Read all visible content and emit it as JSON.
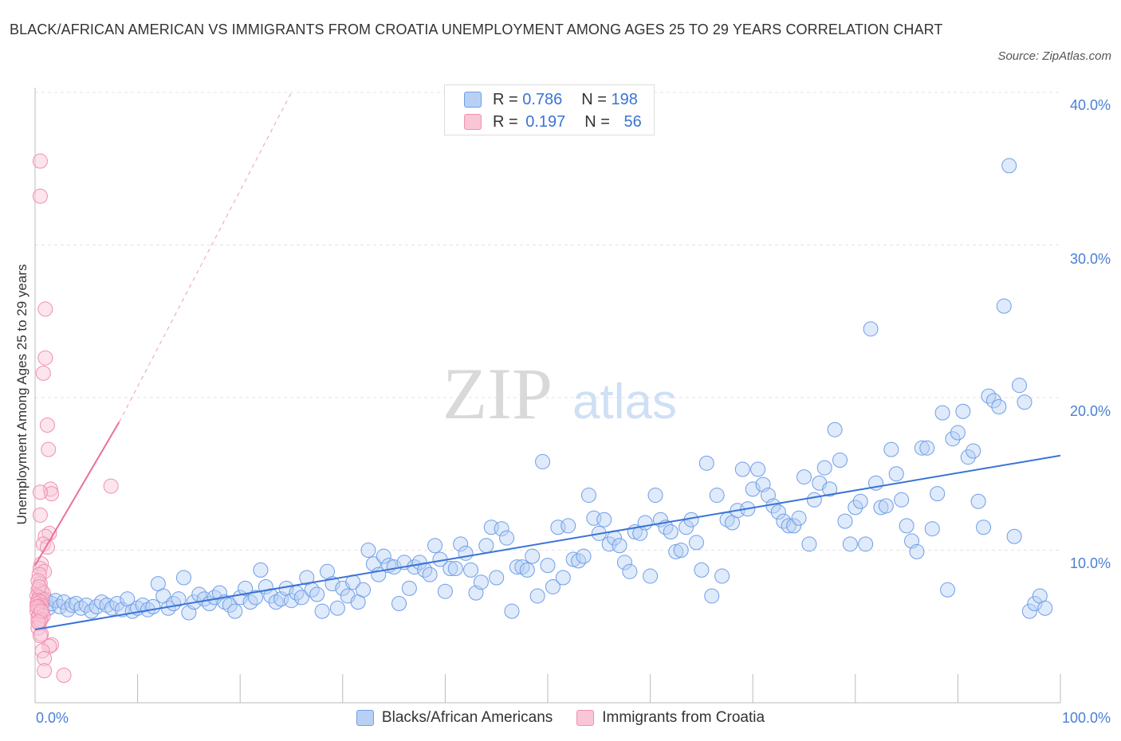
{
  "title": "BLACK/AFRICAN AMERICAN VS IMMIGRANTS FROM CROATIA UNEMPLOYMENT AMONG AGES 25 TO 29 YEARS CORRELATION CHART",
  "source": "Source: ZipAtlas.com",
  "watermark": {
    "zip": "ZIP",
    "atlas": "atlas"
  },
  "stats": [
    {
      "r_label": "R =",
      "r_value": "0.786",
      "n_label": "N =",
      "n_value": "198",
      "color": "#6f9ee8"
    },
    {
      "r_label": "R =",
      "r_value": "0.197",
      "n_label": "N =",
      "n_value": "56",
      "color": "#f08fb0"
    }
  ],
  "legend": [
    {
      "label": "Blacks/African Americans",
      "color": "#6f9ee8"
    },
    {
      "label": "Immigrants from Croatia",
      "color": "#f08fb0"
    }
  ],
  "chart_data": {
    "type": "scatter",
    "title": "BLACK/AFRICAN AMERICAN VS IMMIGRANTS FROM CROATIA UNEMPLOYMENT AMONG AGES 25 TO 29 YEARS CORRELATION CHART",
    "xlabel": "",
    "ylabel": "Unemployment Among Ages 25 to 29 years",
    "xlim": [
      0,
      100
    ],
    "ylim": [
      0,
      40
    ],
    "x_tick_labels": [
      "0.0%",
      "100.0%"
    ],
    "y_ticks": [
      10,
      20,
      30,
      40
    ],
    "y_tick_labels": [
      "10.0%",
      "20.0%",
      "30.0%",
      "40.0%"
    ],
    "series": [
      {
        "name": "Blacks/African Americans",
        "color": "#6f9ee8",
        "trend": {
          "x": [
            0,
            100
          ],
          "y": [
            4.8,
            16.2
          ],
          "style": "solid"
        },
        "points": [
          [
            0.5,
            6.4
          ],
          [
            0.8,
            6.6
          ],
          [
            1.0,
            6.8
          ],
          [
            1.3,
            6.2
          ],
          [
            1.6,
            6.5
          ],
          [
            2.0,
            6.7
          ],
          [
            2.4,
            6.3
          ],
          [
            2.8,
            6.6
          ],
          [
            3.2,
            6.1
          ],
          [
            3.6,
            6.4
          ],
          [
            4.0,
            6.5
          ],
          [
            4.5,
            6.2
          ],
          [
            5.0,
            6.4
          ],
          [
            5.5,
            6.0
          ],
          [
            6.0,
            6.3
          ],
          [
            6.5,
            6.6
          ],
          [
            7.0,
            6.4
          ],
          [
            7.5,
            6.2
          ],
          [
            8.0,
            6.5
          ],
          [
            8.5,
            6.1
          ],
          [
            9.0,
            6.8
          ],
          [
            9.5,
            6.0
          ],
          [
            10.0,
            6.2
          ],
          [
            10.5,
            6.4
          ],
          [
            11.0,
            6.1
          ],
          [
            11.5,
            6.3
          ],
          [
            12.0,
            7.8
          ],
          [
            12.5,
            7.0
          ],
          [
            13.0,
            6.2
          ],
          [
            13.5,
            6.5
          ],
          [
            14.0,
            6.8
          ],
          [
            14.5,
            8.2
          ],
          [
            15.0,
            5.9
          ],
          [
            15.5,
            6.6
          ],
          [
            16.0,
            7.1
          ],
          [
            16.5,
            6.8
          ],
          [
            17.0,
            6.5
          ],
          [
            17.5,
            6.9
          ],
          [
            18.0,
            7.2
          ],
          [
            18.5,
            6.6
          ],
          [
            19.0,
            6.4
          ],
          [
            19.5,
            6.0
          ],
          [
            20.0,
            6.9
          ],
          [
            20.5,
            7.5
          ],
          [
            21.0,
            6.6
          ],
          [
            21.5,
            6.9
          ],
          [
            22.0,
            8.7
          ],
          [
            22.5,
            7.6
          ],
          [
            23.0,
            7.0
          ],
          [
            23.5,
            6.6
          ],
          [
            24.0,
            6.8
          ],
          [
            24.5,
            7.5
          ],
          [
            25.0,
            6.7
          ],
          [
            25.5,
            7.2
          ],
          [
            26.0,
            6.9
          ],
          [
            26.5,
            8.2
          ],
          [
            27.0,
            7.4
          ],
          [
            27.5,
            7.1
          ],
          [
            28.0,
            6.0
          ],
          [
            28.5,
            8.6
          ],
          [
            29.0,
            7.8
          ],
          [
            29.5,
            6.2
          ],
          [
            30.0,
            7.5
          ],
          [
            30.5,
            7.0
          ],
          [
            31.0,
            7.9
          ],
          [
            31.5,
            6.6
          ],
          [
            32.0,
            7.4
          ],
          [
            32.5,
            10.0
          ],
          [
            33.0,
            9.1
          ],
          [
            33.5,
            8.4
          ],
          [
            34.0,
            9.6
          ],
          [
            34.5,
            9.0
          ],
          [
            35.0,
            8.9
          ],
          [
            35.5,
            6.5
          ],
          [
            36.0,
            9.2
          ],
          [
            36.5,
            7.5
          ],
          [
            37.0,
            8.9
          ],
          [
            37.5,
            9.2
          ],
          [
            38.0,
            8.7
          ],
          [
            38.5,
            8.4
          ],
          [
            39.0,
            10.3
          ],
          [
            39.5,
            9.4
          ],
          [
            40.0,
            7.3
          ],
          [
            40.5,
            8.8
          ],
          [
            41.0,
            8.8
          ],
          [
            41.5,
            10.4
          ],
          [
            42.0,
            9.8
          ],
          [
            42.5,
            8.7
          ],
          [
            43.0,
            7.2
          ],
          [
            43.5,
            7.9
          ],
          [
            44.0,
            10.3
          ],
          [
            44.5,
            11.5
          ],
          [
            45.0,
            8.2
          ],
          [
            45.5,
            11.4
          ],
          [
            46.0,
            10.8
          ],
          [
            46.5,
            6.0
          ],
          [
            47.0,
            8.9
          ],
          [
            47.5,
            8.9
          ],
          [
            48.0,
            8.7
          ],
          [
            48.5,
            9.6
          ],
          [
            49.0,
            7.0
          ],
          [
            49.5,
            15.8
          ],
          [
            50.0,
            9.0
          ],
          [
            50.5,
            7.6
          ],
          [
            51.0,
            11.5
          ],
          [
            51.5,
            8.2
          ],
          [
            52.0,
            11.6
          ],
          [
            52.5,
            9.4
          ],
          [
            53.0,
            9.3
          ],
          [
            53.5,
            9.6
          ],
          [
            54.0,
            13.6
          ],
          [
            54.5,
            12.1
          ],
          [
            55.0,
            11.1
          ],
          [
            55.5,
            12.0
          ],
          [
            56.0,
            10.4
          ],
          [
            56.5,
            10.8
          ],
          [
            57.0,
            10.3
          ],
          [
            57.5,
            9.2
          ],
          [
            58.0,
            8.6
          ],
          [
            58.5,
            11.2
          ],
          [
            59.0,
            11.1
          ],
          [
            59.5,
            11.8
          ],
          [
            60.0,
            8.3
          ],
          [
            60.5,
            13.6
          ],
          [
            61.0,
            12.0
          ],
          [
            61.5,
            11.5
          ],
          [
            62.0,
            11.2
          ],
          [
            62.5,
            9.9
          ],
          [
            63.0,
            10.0
          ],
          [
            63.5,
            11.5
          ],
          [
            64.0,
            12.0
          ],
          [
            64.5,
            10.5
          ],
          [
            65.0,
            8.7
          ],
          [
            65.5,
            15.7
          ],
          [
            66.0,
            7.0
          ],
          [
            66.5,
            13.6
          ],
          [
            67.0,
            8.3
          ],
          [
            67.5,
            12.0
          ],
          [
            68.0,
            11.8
          ],
          [
            68.5,
            12.6
          ],
          [
            69.0,
            15.3
          ],
          [
            69.5,
            12.7
          ],
          [
            70.0,
            14.0
          ],
          [
            70.5,
            15.3
          ],
          [
            71.0,
            14.3
          ],
          [
            71.5,
            13.6
          ],
          [
            72.0,
            12.9
          ],
          [
            72.5,
            12.5
          ],
          [
            73.0,
            11.9
          ],
          [
            73.5,
            11.6
          ],
          [
            74.0,
            11.6
          ],
          [
            74.5,
            12.1
          ],
          [
            75.0,
            14.8
          ],
          [
            75.5,
            10.4
          ],
          [
            76.0,
            13.3
          ],
          [
            76.5,
            14.4
          ],
          [
            77.0,
            15.4
          ],
          [
            77.5,
            14.0
          ],
          [
            78.0,
            17.9
          ],
          [
            78.5,
            15.9
          ],
          [
            79.0,
            11.9
          ],
          [
            79.5,
            10.4
          ],
          [
            80.0,
            12.8
          ],
          [
            80.5,
            13.2
          ],
          [
            81.0,
            10.4
          ],
          [
            81.5,
            24.5
          ],
          [
            82.0,
            14.4
          ],
          [
            82.5,
            12.8
          ],
          [
            83.0,
            12.9
          ],
          [
            83.5,
            16.6
          ],
          [
            84.0,
            15.0
          ],
          [
            84.5,
            13.3
          ],
          [
            85.0,
            11.6
          ],
          [
            85.5,
            10.6
          ],
          [
            86.0,
            9.9
          ],
          [
            86.5,
            16.7
          ],
          [
            87.0,
            16.7
          ],
          [
            87.5,
            11.4
          ],
          [
            88.0,
            13.7
          ],
          [
            88.5,
            19.0
          ],
          [
            89.0,
            7.4
          ],
          [
            89.5,
            17.3
          ],
          [
            90.0,
            17.7
          ],
          [
            90.5,
            19.1
          ],
          [
            91.0,
            16.1
          ],
          [
            91.5,
            16.5
          ],
          [
            92.0,
            13.2
          ],
          [
            92.5,
            11.5
          ],
          [
            93.0,
            20.1
          ],
          [
            93.5,
            19.8
          ],
          [
            94.0,
            19.4
          ],
          [
            94.5,
            26.0
          ],
          [
            95.0,
            35.2
          ],
          [
            95.5,
            10.9
          ],
          [
            96.0,
            20.8
          ],
          [
            96.5,
            19.7
          ],
          [
            97.0,
            6.0
          ],
          [
            97.5,
            6.5
          ],
          [
            98.0,
            7.0
          ],
          [
            98.5,
            6.2
          ]
        ]
      },
      {
        "name": "Immigrants from Croatia",
        "color": "#f08fb0",
        "trend": {
          "x": [
            0,
            8.2,
            25
          ],
          "y": [
            9.0,
            18.4,
            40.0
          ],
          "style": "solid-then-dashed"
        },
        "points": [
          [
            0.5,
            35.5
          ],
          [
            0.5,
            33.2
          ],
          [
            1.0,
            25.8
          ],
          [
            1.0,
            22.6
          ],
          [
            0.8,
            21.6
          ],
          [
            1.2,
            18.2
          ],
          [
            1.3,
            16.6
          ],
          [
            1.5,
            14.0
          ],
          [
            1.6,
            13.7
          ],
          [
            0.5,
            13.8
          ],
          [
            0.5,
            12.3
          ],
          [
            1.4,
            11.1
          ],
          [
            1.0,
            10.9
          ],
          [
            0.8,
            10.4
          ],
          [
            1.2,
            10.2
          ],
          [
            0.6,
            9.1
          ],
          [
            0.5,
            8.8
          ],
          [
            0.9,
            8.6
          ],
          [
            0.4,
            8.4
          ],
          [
            0.5,
            7.8
          ],
          [
            0.3,
            7.4
          ],
          [
            0.6,
            7.3
          ],
          [
            0.8,
            7.2
          ],
          [
            0.2,
            7.0
          ],
          [
            0.4,
            6.9
          ],
          [
            0.7,
            6.8
          ],
          [
            0.3,
            6.7
          ],
          [
            0.5,
            6.6
          ],
          [
            0.2,
            6.5
          ],
          [
            0.6,
            6.4
          ],
          [
            0.4,
            6.3
          ],
          [
            0.3,
            6.2
          ],
          [
            0.5,
            6.1
          ],
          [
            0.2,
            6.0
          ],
          [
            0.7,
            5.9
          ],
          [
            0.4,
            5.8
          ],
          [
            0.3,
            5.6
          ],
          [
            0.6,
            5.5
          ],
          [
            0.4,
            5.2
          ],
          [
            0.3,
            4.9
          ],
          [
            0.6,
            4.5
          ],
          [
            0.5,
            4.4
          ],
          [
            1.6,
            3.8
          ],
          [
            1.4,
            3.7
          ],
          [
            0.7,
            3.4
          ],
          [
            0.9,
            2.9
          ],
          [
            2.8,
            1.8
          ],
          [
            0.9,
            2.1
          ],
          [
            7.4,
            14.2
          ],
          [
            0.3,
            8.0
          ],
          [
            0.2,
            6.3
          ],
          [
            0.8,
            5.7
          ],
          [
            0.5,
            5.4
          ],
          [
            0.4,
            7.6
          ],
          [
            0.6,
            6.0
          ],
          [
            0.3,
            5.3
          ]
        ]
      }
    ]
  }
}
